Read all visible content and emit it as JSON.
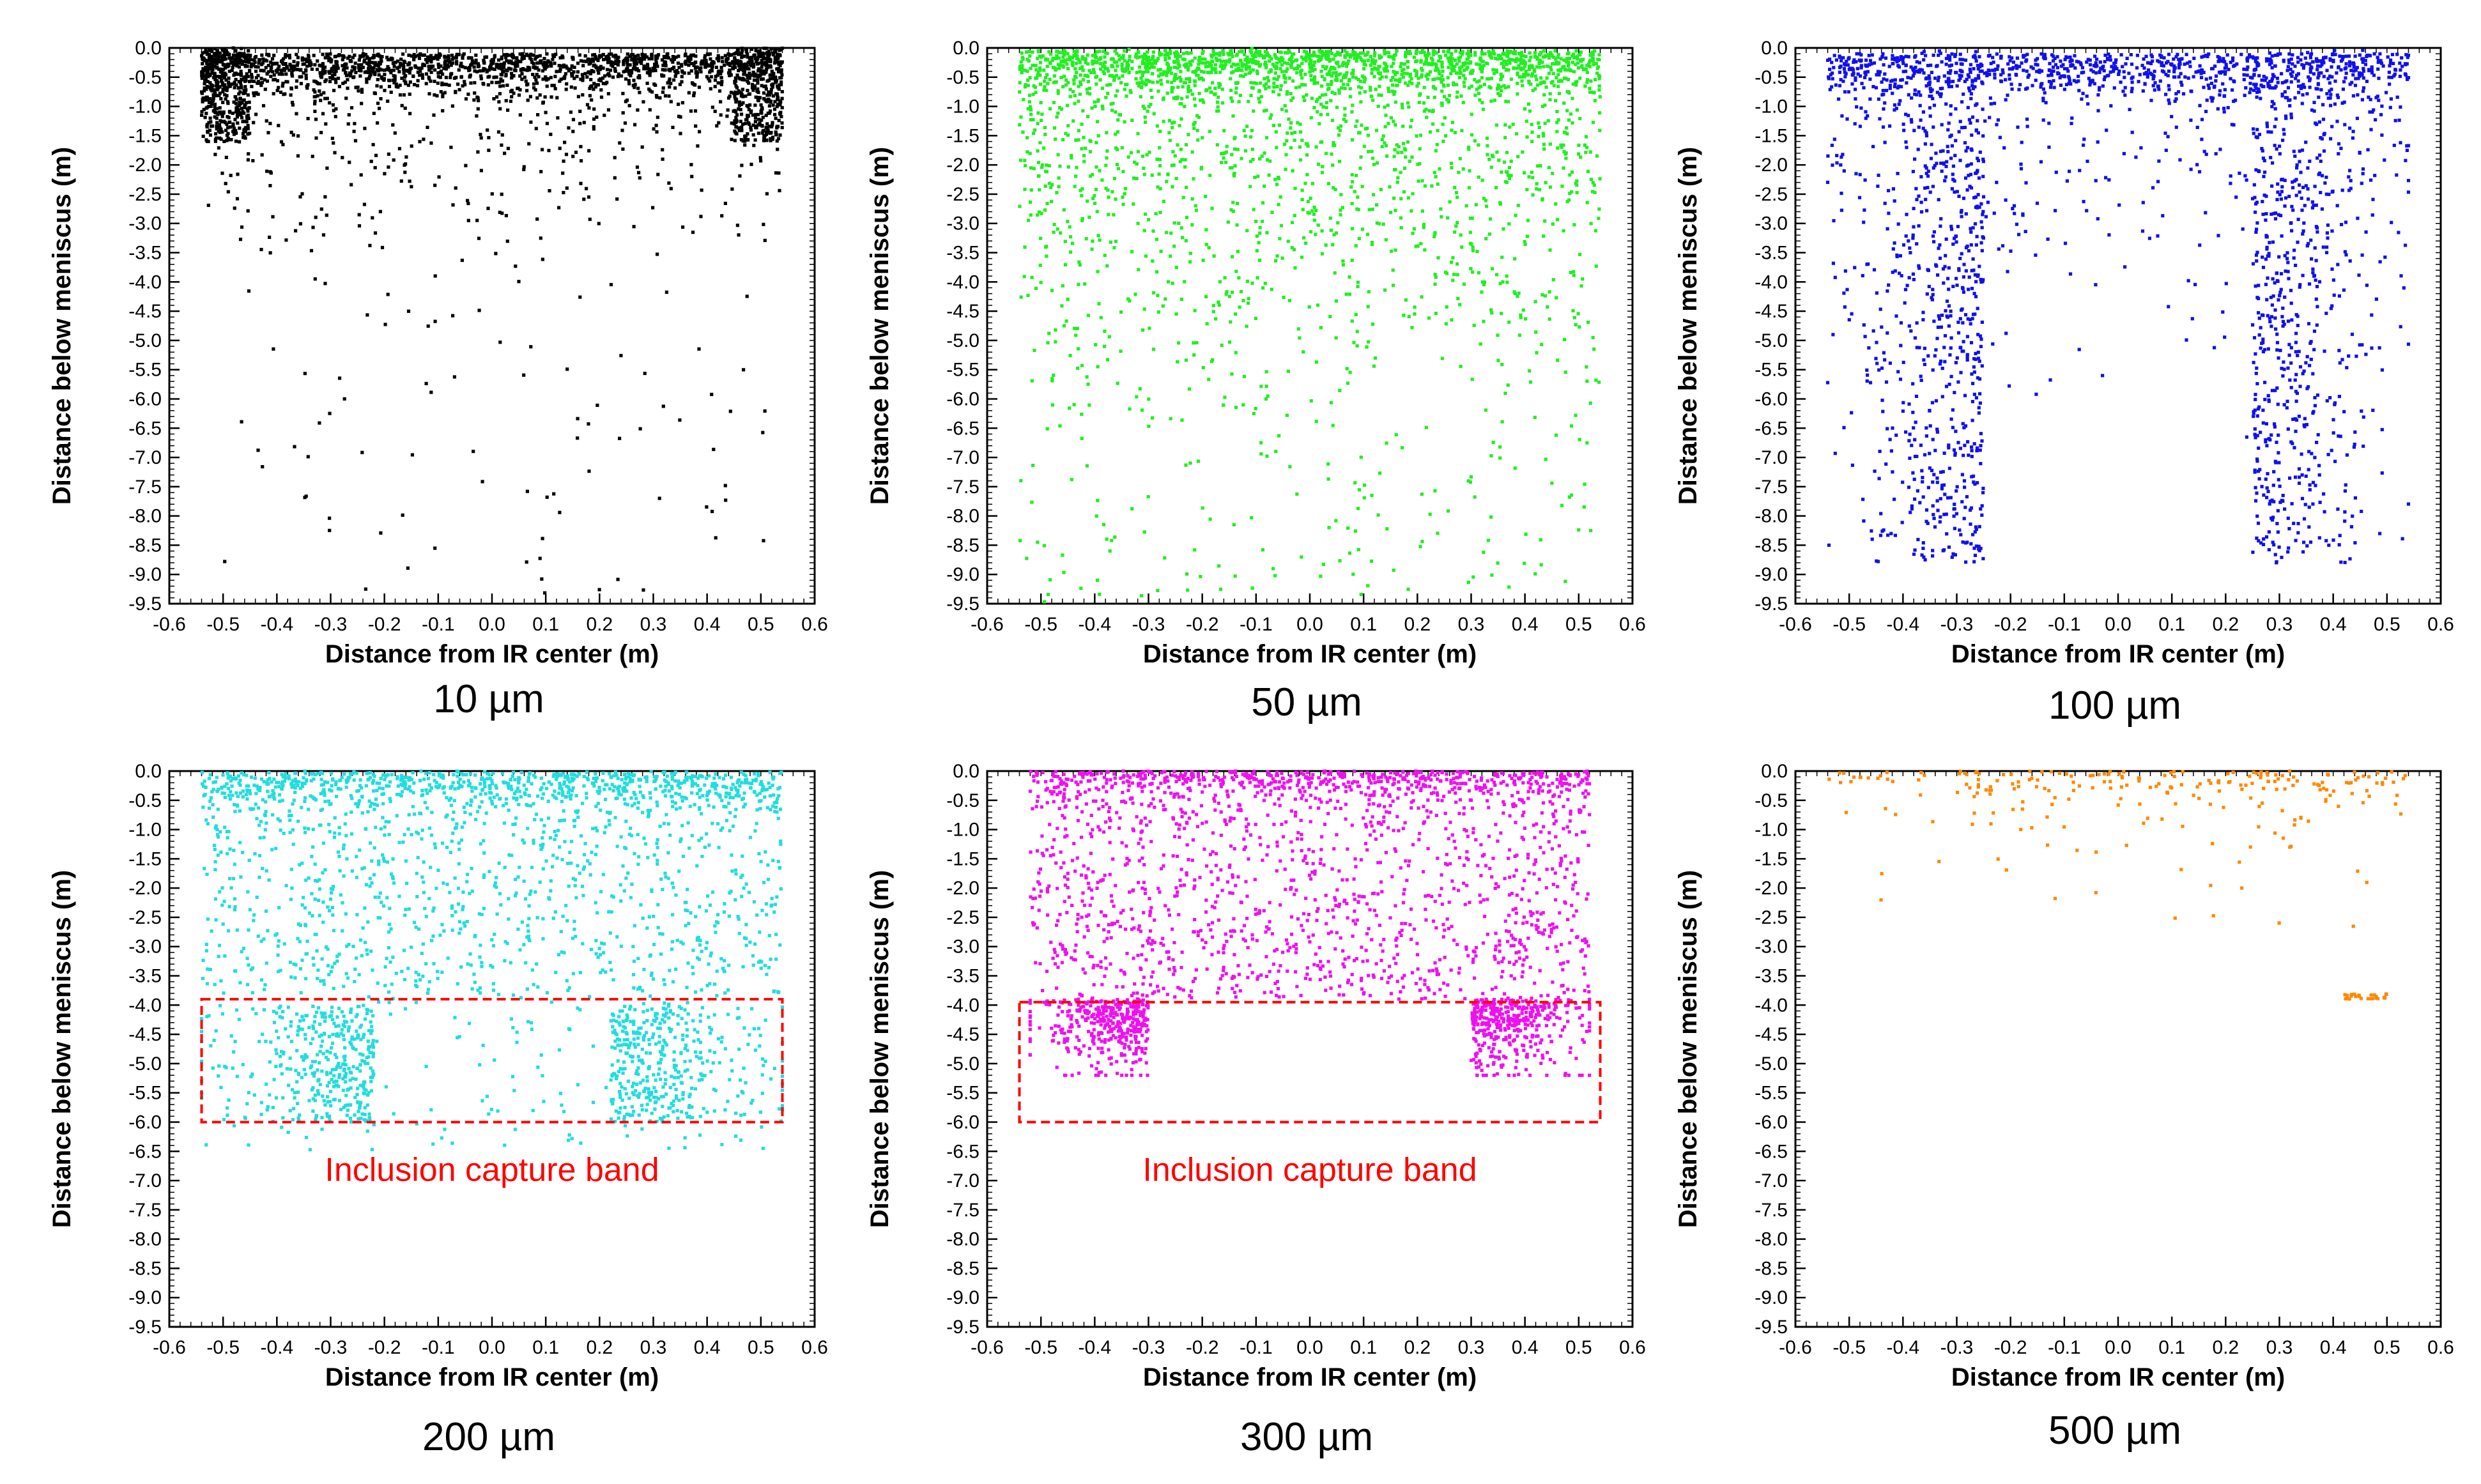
{
  "figure": {
    "description_labels": true
  },
  "chart_data": [
    {
      "type": "scatter",
      "caption": "10 µm",
      "xlabel": "Distance from IR center (m)",
      "ylabel": "Distance below meniscus (m)",
      "xlim": [
        -0.6,
        0.6
      ],
      "ylim": [
        -9.5,
        0.0
      ],
      "xticks": [
        "-0.6",
        "-0.5",
        "-0.4",
        "-0.3",
        "-0.2",
        "-0.1",
        "0.0",
        "0.1",
        "0.2",
        "0.3",
        "0.4",
        "0.5",
        "0.6"
      ],
      "yticks": [
        "0.0",
        "-0.5",
        "-1.0",
        "-1.5",
        "-2.0",
        "-2.5",
        "-3.0",
        "-3.5",
        "-4.0",
        "-4.5",
        "-5.0",
        "-5.5",
        "-6.0",
        "-6.5",
        "-7.0",
        "-7.5",
        "-8.0",
        "-8.5",
        "-9.0",
        "-9.5"
      ],
      "color": "#000000",
      "series": [
        {
          "name": "10 µm particles",
          "pattern": "dense-top-corners",
          "point_count": 2600,
          "max_depth": 9.4,
          "x_range": [
            -0.54,
            0.54
          ]
        }
      ]
    },
    {
      "type": "scatter",
      "caption": "50 µm",
      "xlabel": "Distance from IR center (m)",
      "ylabel": "Distance below meniscus (m)",
      "xlim": [
        -0.6,
        0.6
      ],
      "ylim": [
        -9.5,
        0.0
      ],
      "xticks": [
        "-0.6",
        "-0.5",
        "-0.4",
        "-0.3",
        "-0.2",
        "-0.1",
        "0.0",
        "0.1",
        "0.2",
        "0.3",
        "0.4",
        "0.5",
        "0.6"
      ],
      "yticks": [
        "0.0",
        "-0.5",
        "-1.0",
        "-1.5",
        "-2.0",
        "-2.5",
        "-3.0",
        "-3.5",
        "-4.0",
        "-4.5",
        "-5.0",
        "-5.5",
        "-6.0",
        "-6.5",
        "-7.0",
        "-7.5",
        "-8.0",
        "-8.5",
        "-9.0",
        "-9.5"
      ],
      "color": "#22ee22",
      "series": [
        {
          "name": "50 µm particles",
          "pattern": "dense-top-spread",
          "point_count": 2800,
          "max_depth": 9.5,
          "x_range": [
            -0.54,
            0.54
          ]
        }
      ]
    },
    {
      "type": "scatter",
      "caption": "100 µm",
      "xlabel": "Distance from IR center (m)",
      "ylabel": "Distance below meniscus (m)",
      "xlim": [
        -0.6,
        0.6
      ],
      "ylim": [
        -9.5,
        0.0
      ],
      "xticks": [
        "-0.6",
        "-0.5",
        "-0.4",
        "-0.3",
        "-0.2",
        "-0.1",
        "0.0",
        "0.1",
        "0.2",
        "0.3",
        "0.4",
        "0.5",
        "0.6"
      ],
      "yticks": [
        "0.0",
        "-0.5",
        "-1.0",
        "-1.5",
        "-2.0",
        "-2.5",
        "-3.0",
        "-3.5",
        "-4.0",
        "-4.5",
        "-5.0",
        "-5.5",
        "-6.0",
        "-6.5",
        "-7.0",
        "-7.5",
        "-8.0",
        "-8.5",
        "-9.0",
        "-9.5"
      ],
      "color": "#1010ee",
      "series": [
        {
          "name": "100 µm particles",
          "pattern": "two-lobes-deep",
          "point_count": 2400,
          "max_depth": 8.8,
          "x_range": [
            -0.54,
            0.54
          ]
        }
      ]
    },
    {
      "type": "scatter",
      "caption": "200 µm",
      "xlabel": "Distance from IR center (m)",
      "ylabel": "Distance below meniscus (m)",
      "xlim": [
        -0.6,
        0.6
      ],
      "ylim": [
        -9.5,
        0.0
      ],
      "xticks": [
        "-0.6",
        "-0.5",
        "-0.4",
        "-0.3",
        "-0.2",
        "-0.1",
        "0.0",
        "0.1",
        "0.2",
        "0.3",
        "0.4",
        "0.5",
        "0.6"
      ],
      "yticks": [
        "0.0",
        "-0.5",
        "-1.0",
        "-1.5",
        "-2.0",
        "-2.5",
        "-3.0",
        "-3.5",
        "-4.0",
        "-4.5",
        "-5.0",
        "-5.5",
        "-6.0",
        "-6.5",
        "-7.0",
        "-7.5",
        "-8.0",
        "-8.5",
        "-9.0",
        "-9.5"
      ],
      "color": "#22dddd",
      "band": {
        "label": "Inclusion capture band",
        "x": [
          -0.54,
          0.54
        ],
        "y": [
          -6.0,
          -3.9
        ],
        "color": "#ff0000"
      },
      "series": [
        {
          "name": "200 µm particles",
          "pattern": "top-plus-band",
          "point_count": 2600,
          "max_depth": 6.5,
          "x_range": [
            -0.54,
            0.54
          ]
        }
      ]
    },
    {
      "type": "scatter",
      "caption": "300 µm",
      "xlabel": "Distance from IR center (m)",
      "ylabel": "Distance below meniscus (m)",
      "xlim": [
        -0.6,
        0.6
      ],
      "ylim": [
        -9.5,
        0.0
      ],
      "xticks": [
        "-0.6",
        "-0.5",
        "-0.4",
        "-0.3",
        "-0.2",
        "-0.1",
        "0.0",
        "0.1",
        "0.2",
        "0.3",
        "0.4",
        "0.5",
        "0.6"
      ],
      "yticks": [
        "0.0",
        "-0.5",
        "-1.0",
        "-1.5",
        "-2.0",
        "-2.5",
        "-3.0",
        "-3.5",
        "-4.0",
        "-4.5",
        "-5.0",
        "-5.5",
        "-6.0",
        "-6.5",
        "-7.0",
        "-7.5",
        "-8.0",
        "-8.5",
        "-9.0",
        "-9.5"
      ],
      "color": "#ee11ee",
      "band": {
        "label": "Inclusion capture band",
        "x": [
          -0.54,
          0.54
        ],
        "y": [
          -6.0,
          -3.95
        ],
        "color": "#ff0000"
      },
      "series": [
        {
          "name": "300 µm particles",
          "pattern": "top-plus-band-corners",
          "point_count": 2600,
          "max_depth": 5.2,
          "x_range": [
            -0.52,
            0.52
          ]
        }
      ]
    },
    {
      "type": "scatter",
      "caption": "500 µm",
      "xlabel": "Distance from IR center (m)",
      "ylabel": "Distance below meniscus (m)",
      "xlim": [
        -0.6,
        0.6
      ],
      "ylim": [
        -9.5,
        0.0
      ],
      "xticks": [
        "-0.6",
        "-0.5",
        "-0.4",
        "-0.3",
        "-0.2",
        "-0.1",
        "0.0",
        "0.1",
        "0.2",
        "0.3",
        "0.4",
        "0.5",
        "0.6"
      ],
      "yticks": [
        "0.0",
        "-0.5",
        "-1.0",
        "-1.5",
        "-2.0",
        "-2.5",
        "-3.0",
        "-3.5",
        "-4.0",
        "-4.5",
        "-5.0",
        "-5.5",
        "-6.0",
        "-6.5",
        "-7.0",
        "-7.5",
        "-8.0",
        "-8.5",
        "-9.0",
        "-9.5"
      ],
      "color": "#ff8800",
      "series": [
        {
          "name": "500 µm particles",
          "pattern": "sparse-top",
          "point_count": 260,
          "max_depth": 3.9,
          "x_range": [
            -0.54,
            0.54
          ]
        }
      ]
    }
  ]
}
